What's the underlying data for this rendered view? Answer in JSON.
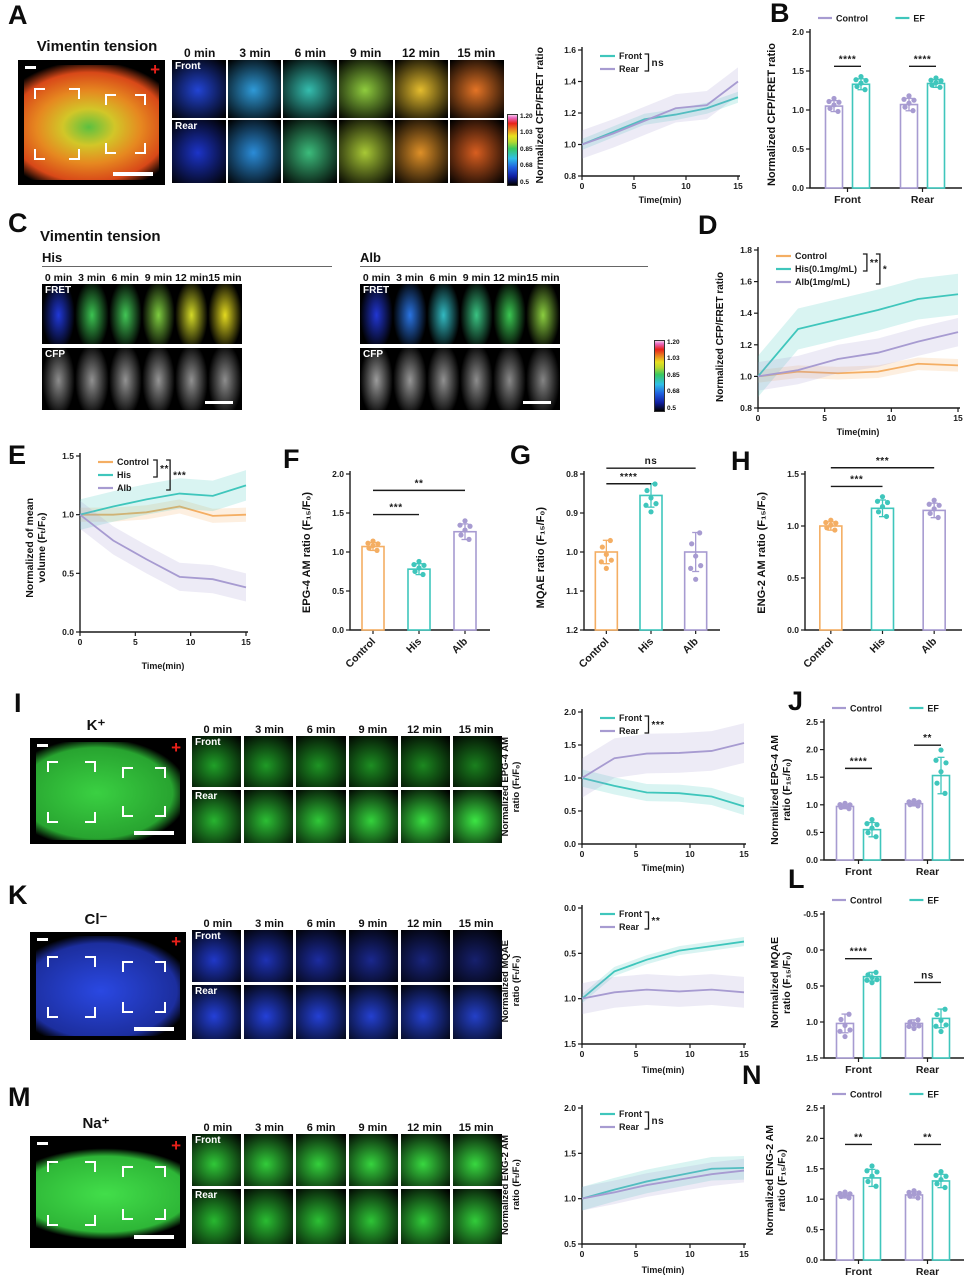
{
  "colors": {
    "teal": "#3FC6BC",
    "purple": "#A79BD1",
    "orange": "#F4AE63",
    "red_plus": "#E8211A"
  },
  "time_headers": [
    "0 min",
    "3 min",
    "6 min",
    "9 min",
    "12 min",
    "15 min"
  ],
  "colorbar": {
    "labels": [
      "1.20",
      "1.03",
      "0.85",
      "0.68",
      "0.5"
    ]
  },
  "A": {
    "letter": "A",
    "title": "Vimentin tension",
    "cell": {
      "blob": [
        "#5cc040",
        "#d2c628",
        "#e68820",
        "#d84818"
      ]
    },
    "montage": {
      "rows": [
        {
          "label": "Front",
          "colors": [
            "#2244d4",
            "#2f9ad8",
            "#35bdae",
            "#8fcc3e",
            "#e4bc2e",
            "#e47426"
          ]
        },
        {
          "label": "Rear",
          "colors": [
            "#1c34c8",
            "#2b8cd8",
            "#3cbc7c",
            "#a8c836",
            "#de9028",
            "#d85e20"
          ]
        }
      ]
    },
    "ylabel": "Normalized CFP/FRET ratio",
    "chart": {
      "type": "line",
      "x": [
        0,
        3,
        6,
        9,
        12,
        15
      ],
      "xticks": [
        0,
        5,
        10,
        15
      ],
      "xlabel": "Time(min)",
      "yticks": [
        0.8,
        1.0,
        1.2,
        1.4,
        1.6
      ],
      "series": [
        {
          "name": "Front",
          "color": "#3FC6BC",
          "values": [
            1.0,
            1.08,
            1.16,
            1.19,
            1.23,
            1.3
          ],
          "band": 0.035
        },
        {
          "name": "Rear",
          "color": "#A79BD1",
          "values": [
            1.0,
            1.07,
            1.15,
            1.23,
            1.25,
            1.4
          ],
          "band": 0.09
        }
      ],
      "brackets": [
        {
          "from": 0,
          "to": 1,
          "label": "ns"
        }
      ]
    }
  },
  "B": {
    "letter": "B",
    "ylabel": "Normalized CFP/FRET ratio",
    "chart": {
      "type": "gbar",
      "groups": [
        "Front",
        "Rear"
      ],
      "yticks": [
        0.0,
        0.5,
        1.0,
        1.5,
        2.0
      ],
      "series": [
        {
          "name": "Control",
          "color": "#A79BD1",
          "values": [
            1.05,
            1.07
          ],
          "errs": [
            0.07,
            0.08
          ]
        },
        {
          "name": "EF",
          "color": "#3FC6BC",
          "values": [
            1.33,
            1.34
          ],
          "errs": [
            0.07,
            0.05
          ]
        }
      ],
      "sig": [
        {
          "g": 0,
          "label": "****",
          "y": 1.56
        },
        {
          "g": 1,
          "label": "****",
          "y": 1.56
        }
      ]
    }
  },
  "C": {
    "letter": "C",
    "title": "Vimentin tension",
    "his_label": "His",
    "alb_label": "Alb",
    "his_montage": {
      "rows": [
        {
          "label": "FRET",
          "colors": [
            "#2038d8",
            "#3cc352",
            "#42c656",
            "#7ecc40",
            "#d4da28",
            "#e4da20"
          ]
        },
        {
          "label": "CFP",
          "colors": [
            "#8d8d8d",
            "#919191",
            "#939393",
            "#959595",
            "#919191",
            "#8e8e8e"
          ]
        }
      ]
    },
    "alb_montage": {
      "rows": [
        {
          "label": "FRET",
          "colors": [
            "#2136d2",
            "#2a74e2",
            "#33bac2",
            "#3ac382",
            "#3bc752",
            "#8bce40"
          ]
        },
        {
          "label": "CFP",
          "colors": [
            "#9c9c9c",
            "#969696",
            "#919191",
            "#8d8d8d",
            "#898989",
            "#858585"
          ]
        }
      ]
    }
  },
  "D": {
    "letter": "D",
    "ylabel": "Normalized CFP/FRET ratio",
    "chart": {
      "type": "line",
      "x": [
        0,
        3,
        6,
        9,
        12,
        15
      ],
      "xticks": [
        0,
        5,
        10,
        15
      ],
      "xlabel": "Time(min)",
      "yticks": [
        0.8,
        1.0,
        1.2,
        1.4,
        1.6,
        1.8
      ],
      "series": [
        {
          "name": "Control",
          "color": "#F4AE63",
          "values": [
            1.0,
            1.03,
            1.02,
            1.03,
            1.08,
            1.07
          ],
          "band": 0.04
        },
        {
          "name": "His(0.1mg/mL)",
          "color": "#3FC6BC",
          "values": [
            1.0,
            1.3,
            1.36,
            1.42,
            1.49,
            1.52
          ],
          "band": 0.13
        },
        {
          "name": "Alb(1mg/mL)",
          "color": "#A79BD1",
          "values": [
            1.0,
            1.04,
            1.11,
            1.15,
            1.22,
            1.28
          ],
          "band": 0.09
        }
      ],
      "brackets": [
        {
          "from": 0,
          "to": 1,
          "label": "**"
        },
        {
          "from": 0,
          "to": 2,
          "label": "*"
        }
      ]
    }
  },
  "E": {
    "letter": "E",
    "ylabel1": "Normalized of mean",
    "ylabel2": "volume (Fₜ/F₀)",
    "chart": {
      "type": "line",
      "x": [
        0,
        3,
        6,
        9,
        12,
        15
      ],
      "xticks": [
        0,
        5,
        10,
        15
      ],
      "xlabel": "Time(min)",
      "yticks": [
        0.0,
        0.5,
        1.0,
        1.5
      ],
      "series": [
        {
          "name": "Control",
          "color": "#F4AE63",
          "values": [
            1.0,
            1.0,
            1.02,
            1.07,
            0.99,
            1.0
          ],
          "band": 0.06
        },
        {
          "name": "His",
          "color": "#3FC6BC",
          "values": [
            1.0,
            1.07,
            1.13,
            1.18,
            1.16,
            1.25
          ],
          "band": 0.13
        },
        {
          "name": "Alb",
          "color": "#A79BD1",
          "values": [
            1.0,
            0.78,
            0.62,
            0.47,
            0.45,
            0.38
          ],
          "band": 0.12
        }
      ],
      "brackets": [
        {
          "from": 0,
          "to": 1,
          "label": "**"
        },
        {
          "from": 0,
          "to": 2,
          "label": "***"
        }
      ]
    }
  },
  "F": {
    "letter": "F",
    "ylabel": "EPG-4 AM ratio (F₁₅/F₀)",
    "chart": {
      "type": "bar",
      "cats": [
        "Control",
        "His",
        "Alb"
      ],
      "colors": [
        "#F4AE63",
        "#3FC6BC",
        "#A79BD1"
      ],
      "values": [
        1.07,
        0.78,
        1.26
      ],
      "errs": [
        0.05,
        0.07,
        0.1
      ],
      "yticks": [
        0.0,
        0.5,
        1.0,
        1.5,
        2.0
      ],
      "sig": [
        {
          "from": 0,
          "to": 1,
          "label": "***",
          "y": 1.48
        },
        {
          "from": 0,
          "to": 2,
          "label": "**",
          "y": 1.79
        }
      ]
    }
  },
  "G": {
    "letter": "G",
    "ylabel": "MQAE ratio (F₁₅/F₀)",
    "chart": {
      "type": "bar",
      "cats": [
        "Control",
        "His",
        "Alb"
      ],
      "colors": [
        "#F4AE63",
        "#3FC6BC",
        "#A79BD1"
      ],
      "values": [
        1.0,
        0.855,
        1.0
      ],
      "errs": [
        0.03,
        0.03,
        0.05
      ],
      "yticks": [
        1.2,
        1.1,
        1.0,
        0.9,
        0.8
      ],
      "sig": [
        {
          "from": 0,
          "to": 1,
          "label": "****",
          "y": 0.825
        },
        {
          "from": 0,
          "to": 2,
          "label": "ns",
          "y": 0.785
        }
      ]
    }
  },
  "H": {
    "letter": "H",
    "ylabel": "ENG-2 AM ratio (F₁₅/F₀)",
    "chart": {
      "type": "bar",
      "cats": [
        "Control",
        "His",
        "Alb"
      ],
      "colors": [
        "#F4AE63",
        "#3FC6BC",
        "#A79BD1"
      ],
      "values": [
        1.0,
        1.17,
        1.15
      ],
      "errs": [
        0.04,
        0.08,
        0.07
      ],
      "yticks": [
        0.0,
        0.5,
        1.0,
        1.5
      ],
      "sig": [
        {
          "from": 0,
          "to": 1,
          "label": "***",
          "y": 1.38
        },
        {
          "from": 0,
          "to": 2,
          "label": "***",
          "y": 1.56
        }
      ]
    }
  },
  "I": {
    "letter": "I",
    "title": "K⁺",
    "cell": {
      "blob": [
        "#3ad042",
        "#28a430"
      ]
    },
    "montage": {
      "rows": [
        {
          "label": "Front",
          "colors": [
            "#20a028",
            "#1f9a26",
            "#1e9424",
            "#1d8e22",
            "#1c8820",
            "#1a801e"
          ]
        },
        {
          "label": "Rear",
          "colors": [
            "#28b430",
            "#2cbe34",
            "#30c838",
            "#34d23c",
            "#38dc40",
            "#3ce644"
          ]
        }
      ]
    },
    "chart_ylabel1": "Normalized EPG-4 AM",
    "chart_ylabel2": "ratio (Fₜ/F₀)",
    "chart": {
      "type": "line",
      "x": [
        0,
        3,
        6,
        9,
        12,
        15
      ],
      "xticks": [
        0,
        5,
        10,
        15
      ],
      "xlabel": "Time(min)",
      "yticks": [
        0.0,
        0.5,
        1.0,
        1.5,
        2.0
      ],
      "series": [
        {
          "name": "Front",
          "color": "#3FC6BC",
          "values": [
            1.0,
            0.88,
            0.78,
            0.77,
            0.72,
            0.57
          ],
          "band": 0.13
        },
        {
          "name": "Rear",
          "color": "#A79BD1",
          "values": [
            1.0,
            1.3,
            1.37,
            1.38,
            1.41,
            1.53
          ],
          "band": 0.3
        }
      ],
      "brackets": [
        {
          "from": 0,
          "to": 1,
          "label": "***"
        }
      ]
    }
  },
  "J": {
    "letter": "J",
    "ylabel1": "Normalized EPG-4 AM",
    "ylabel2": "ratio (F₁₅/F₀)",
    "chart": {
      "type": "gbar",
      "groups": [
        "Front",
        "Rear"
      ],
      "yticks": [
        0.0,
        0.5,
        1.0,
        1.5,
        2.0,
        2.5
      ],
      "series": [
        {
          "name": "Control",
          "color": "#A79BD1",
          "values": [
            0.97,
            1.02
          ],
          "errs": [
            0.04,
            0.04
          ]
        },
        {
          "name": "EF",
          "color": "#3FC6BC",
          "values": [
            0.55,
            1.53
          ],
          "errs": [
            0.13,
            0.33
          ]
        }
      ],
      "sig": [
        {
          "g": 0,
          "label": "****",
          "y": 1.66
        },
        {
          "g": 1,
          "label": "**",
          "y": 2.08
        }
      ]
    }
  },
  "K": {
    "letter": "K",
    "title": "Cl⁻",
    "cell": {
      "blob": [
        "#2a48e2",
        "#1c2e9e"
      ]
    },
    "montage": {
      "rows": [
        {
          "label": "Front",
          "colors": [
            "#2038c8",
            "#1e32b4",
            "#1c2ca0",
            "#1a288e",
            "#18247c",
            "#16206e"
          ]
        },
        {
          "label": "Rear",
          "colors": [
            "#2440d8",
            "#2440d8",
            "#2440d4",
            "#2440d0",
            "#2440cc",
            "#2440c8"
          ]
        }
      ]
    },
    "chart_ylabel1": "Normalized MQAE",
    "chart_ylabel2": "ratio (Fₜ/F₀)",
    "chart": {
      "type": "line",
      "x": [
        0,
        3,
        6,
        9,
        12,
        15
      ],
      "xticks": [
        0,
        5,
        10,
        15
      ],
      "xlabel": "Time(min)",
      "yticks": [
        1.5,
        1.0,
        0.5,
        0.0
      ],
      "series": [
        {
          "name": "Front",
          "color": "#3FC6BC",
          "values": [
            1.0,
            0.7,
            0.57,
            0.47,
            0.42,
            0.37
          ],
          "band": 0.05
        },
        {
          "name": "Rear",
          "color": "#A79BD1",
          "values": [
            1.0,
            0.93,
            0.9,
            0.92,
            0.9,
            0.93
          ],
          "band": 0.17
        }
      ],
      "brackets": [
        {
          "from": 0,
          "to": 1,
          "label": "**"
        }
      ]
    }
  },
  "L": {
    "letter": "L",
    "ylabel1": "Normalized MQAE",
    "ylabel2": "ratio (F₁₅/F₀)",
    "chart": {
      "type": "gbar",
      "groups": [
        "Front",
        "Rear"
      ],
      "yticks": [
        1.5,
        1.0,
        0.5,
        0.0,
        -0.5
      ],
      "series": [
        {
          "name": "Control",
          "color": "#A79BD1",
          "values": [
            1.02,
            1.02
          ],
          "errs": [
            0.13,
            0.05
          ]
        },
        {
          "name": "EF",
          "color": "#3FC6BC",
          "values": [
            0.37,
            0.95
          ],
          "errs": [
            0.06,
            0.13
          ]
        }
      ],
      "sig": [
        {
          "g": 0,
          "label": "****",
          "y": 0.12
        },
        {
          "g": 1,
          "label": "ns",
          "y": 0.45
        }
      ]
    }
  },
  "M": {
    "letter": "M",
    "title": "Na⁺",
    "cell": {
      "blob": [
        "#42de4a",
        "#2eb637"
      ]
    },
    "montage": {
      "rows": [
        {
          "label": "Front",
          "colors": [
            "#30c838",
            "#32cc3a",
            "#34d03c",
            "#36d43e",
            "#38d840",
            "#38d840"
          ]
        },
        {
          "label": "Rear",
          "colors": [
            "#28b830",
            "#2abc32",
            "#2cc034",
            "#2ec436",
            "#30c838",
            "#32cc3a"
          ]
        }
      ]
    },
    "chart_ylabel1": "Normalized ENG-2 AM",
    "chart_ylabel2": "ratio (Fₜ/F₀)",
    "chart": {
      "type": "line",
      "x": [
        0,
        3,
        6,
        9,
        12,
        15
      ],
      "xticks": [
        0,
        5,
        10,
        15
      ],
      "xlabel": "Time(min)",
      "yticks": [
        0.5,
        1.0,
        1.5,
        2.0
      ],
      "series": [
        {
          "name": "Front",
          "color": "#3FC6BC",
          "values": [
            1.0,
            1.1,
            1.19,
            1.26,
            1.33,
            1.34
          ],
          "band": 0.13
        },
        {
          "name": "Rear",
          "color": "#A79BD1",
          "values": [
            1.0,
            1.07,
            1.15,
            1.21,
            1.27,
            1.31
          ],
          "band": 0.13
        }
      ],
      "brackets": [
        {
          "from": 0,
          "to": 1,
          "label": "ns"
        }
      ]
    }
  },
  "N": {
    "letter": "N",
    "ylabel1": "Normalized ENG-2 AM",
    "ylabel2": "ratio (F₁₅/F₀)",
    "chart": {
      "type": "gbar",
      "groups": [
        "Front",
        "Rear"
      ],
      "yticks": [
        0.0,
        0.5,
        1.0,
        1.5,
        2.0,
        2.5
      ],
      "series": [
        {
          "name": "Control",
          "color": "#A79BD1",
          "values": [
            1.06,
            1.07
          ],
          "errs": [
            0.04,
            0.05
          ]
        },
        {
          "name": "EF",
          "color": "#3FC6BC",
          "values": [
            1.35,
            1.3
          ],
          "errs": [
            0.14,
            0.11
          ]
        }
      ],
      "sig": [
        {
          "g": 0,
          "label": "**",
          "y": 1.9
        },
        {
          "g": 1,
          "label": "**",
          "y": 1.9
        }
      ]
    }
  }
}
